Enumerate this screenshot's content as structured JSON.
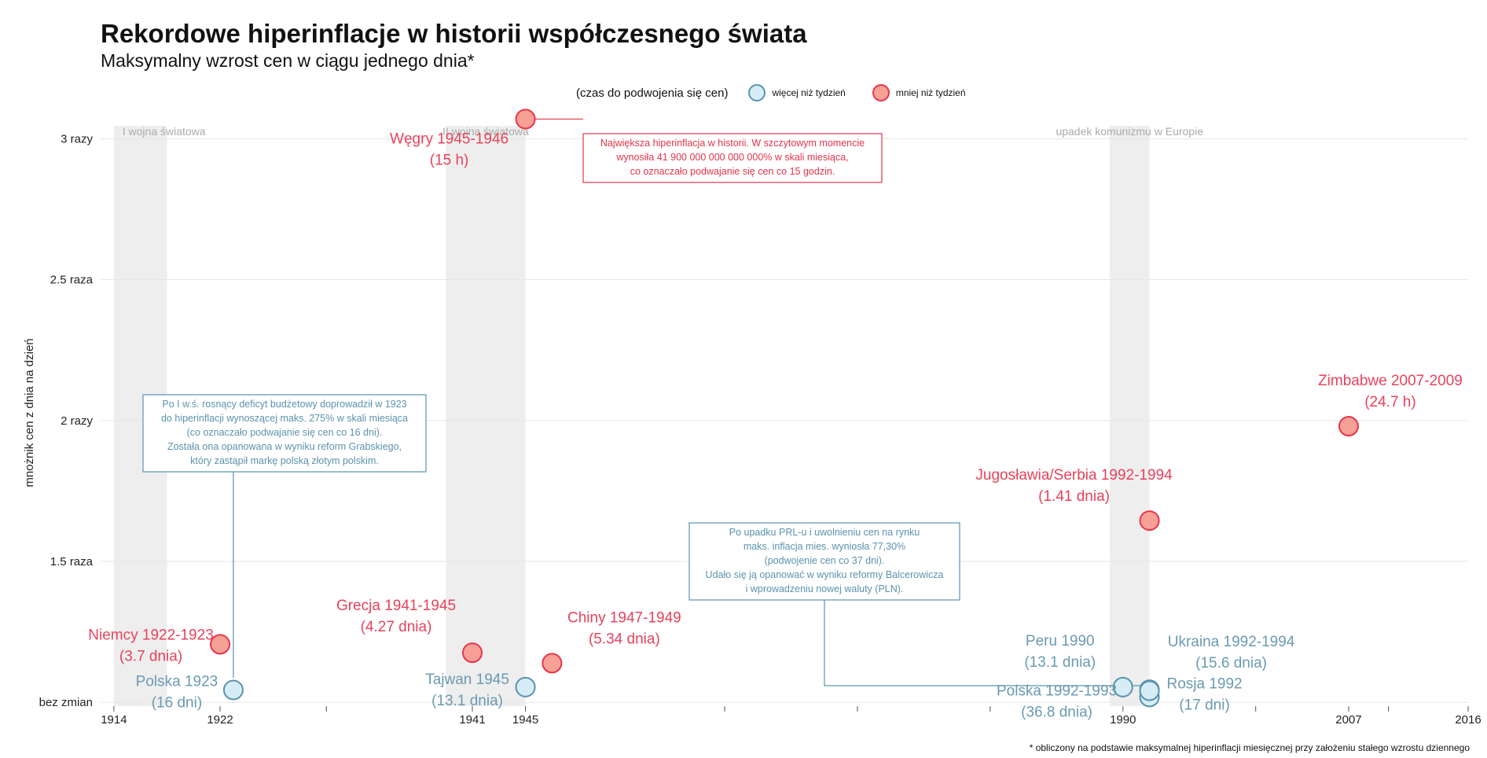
{
  "title": "Rekordowe hiperinflacje w historii współczesnego świata",
  "subtitle": "Maksymalny wzrost cen w ciągu jednego dnia*",
  "footnote": "* obliczony na podstawie maksymalnej hiperinflacji miesięcznej przy założeniu stałego wzrostu dziennego",
  "colors": {
    "more_fill": "#d6edf7",
    "more_stroke": "#5b93ad",
    "more_text": "#6a9ab2",
    "less_fill": "#f7a096",
    "less_stroke": "#e8344a",
    "less_text": "#e8425a",
    "band": "#eeeeee",
    "era_label": "#aaaaaa",
    "grid": "#e6e6e6"
  },
  "legend": {
    "title": "(czas do podwojenia się cen)",
    "items": [
      {
        "label": "więcej niż tydzień",
        "group": "more"
      },
      {
        "label": "mniej niż tydzień",
        "group": "less"
      }
    ]
  },
  "chart_data": {
    "type": "scatter",
    "ylabel": "mnożnik cen z dnia na dzień",
    "xlim": [
      1913,
      2016
    ],
    "ylim": [
      0.995,
      3.06
    ],
    "x_ticks": [
      1914,
      1922,
      1941,
      1945,
      1990,
      2007,
      2016
    ],
    "x_minor_ticks": [
      1930,
      1960,
      1970,
      1980,
      2000,
      2010
    ],
    "y_ticks": [
      {
        "value": 1.0,
        "label": "bez zmian"
      },
      {
        "value": 1.5,
        "label": "1.5 raza"
      },
      {
        "value": 2.0,
        "label": "2 razy"
      },
      {
        "value": 2.5,
        "label": "2.5 raza"
      },
      {
        "value": 3.0,
        "label": "3 razy"
      }
    ],
    "grid": true,
    "legend_position": "top",
    "eras": [
      {
        "label": "I wojna światowa",
        "from": 1914,
        "to": 1918
      },
      {
        "label": "II wojna światowa",
        "from": 1939,
        "to": 1945
      },
      {
        "label": "upadek komunizmu w Europie",
        "from": 1989,
        "to": 1992
      }
    ],
    "points": [
      {
        "country": "Polska 1923",
        "duration": "(16 dni)",
        "x": 1923,
        "y": 1.044,
        "group": "more"
      },
      {
        "country": "Niemcy 1922-1923",
        "duration": "(3.7 dnia)",
        "x": 1922,
        "y": 1.206,
        "group": "less"
      },
      {
        "country": "Grecja 1941-1945",
        "duration": "(4.27 dnia)",
        "x": 1941,
        "y": 1.176,
        "group": "less"
      },
      {
        "country": "Tajwan 1945",
        "duration": "(13.1 dnia)",
        "x": 1945,
        "y": 1.054,
        "group": "more"
      },
      {
        "country": "Węgry 1945-1946",
        "duration": "(15 h)",
        "x": 1945,
        "y": 3.07,
        "group": "less"
      },
      {
        "country": "Chiny 1947-1949",
        "duration": "(5.34 dnia)",
        "x": 1947,
        "y": 1.139,
        "group": "less"
      },
      {
        "country": "Peru 1990",
        "duration": "(13.1 dnia)",
        "x": 1990,
        "y": 1.054,
        "group": "more"
      },
      {
        "country": "Polska 1992-1993",
        "duration": "(36.8 dnia)",
        "x": 1992,
        "y": 1.019,
        "group": "more"
      },
      {
        "country": "Ukraina 1992-1994",
        "duration": "(15.6 dnia)",
        "x": 1992,
        "y": 1.045,
        "group": "more"
      },
      {
        "country": "Rosja 1992",
        "duration": "(17 dni)",
        "x": 1992,
        "y": 1.041,
        "group": "more"
      },
      {
        "country": "Jugosławia/Serbia 1992-1994",
        "duration": "(1.41 dnia)",
        "x": 1992,
        "y": 1.645,
        "group": "less"
      },
      {
        "country": "Zimbabwe 2007-2009",
        "duration": "(24.7 h)",
        "x": 2007,
        "y": 1.98,
        "group": "less"
      }
    ],
    "annotations": [
      {
        "group": "less",
        "lines": [
          "Największa hiperinflacja w historii. W szczytowym momencie",
          "wynosiła 41 900 000 000 000 000% w skali miesiąca,",
          "co oznaczało podwajanie się cen co 15 godzin."
        ]
      },
      {
        "group": "more",
        "lines": [
          "Po I w.ś. rosnący deficyt budżetowy doprowadził w 1923",
          "do hiperinflacji wynoszącej maks. 275% w skali miesiąca",
          "(co oznaczało podwajanie się cen co 16 dni).",
          "Została ona opanowana w wyniku reform Grabskiego,",
          "który zastąpił markę polską złotym polskim."
        ]
      },
      {
        "group": "more",
        "lines": [
          "Po upadku PRL-u i uwolnieniu cen na rynku",
          "maks. inflacja mies. wyniosła 77,30%",
          "(podwojenie cen co 37 dni).",
          "Udało się ją opanować w wyniku reformy Balcerowicza",
          "i wprowadzeniu nowej waluty (PLN)."
        ]
      }
    ]
  }
}
